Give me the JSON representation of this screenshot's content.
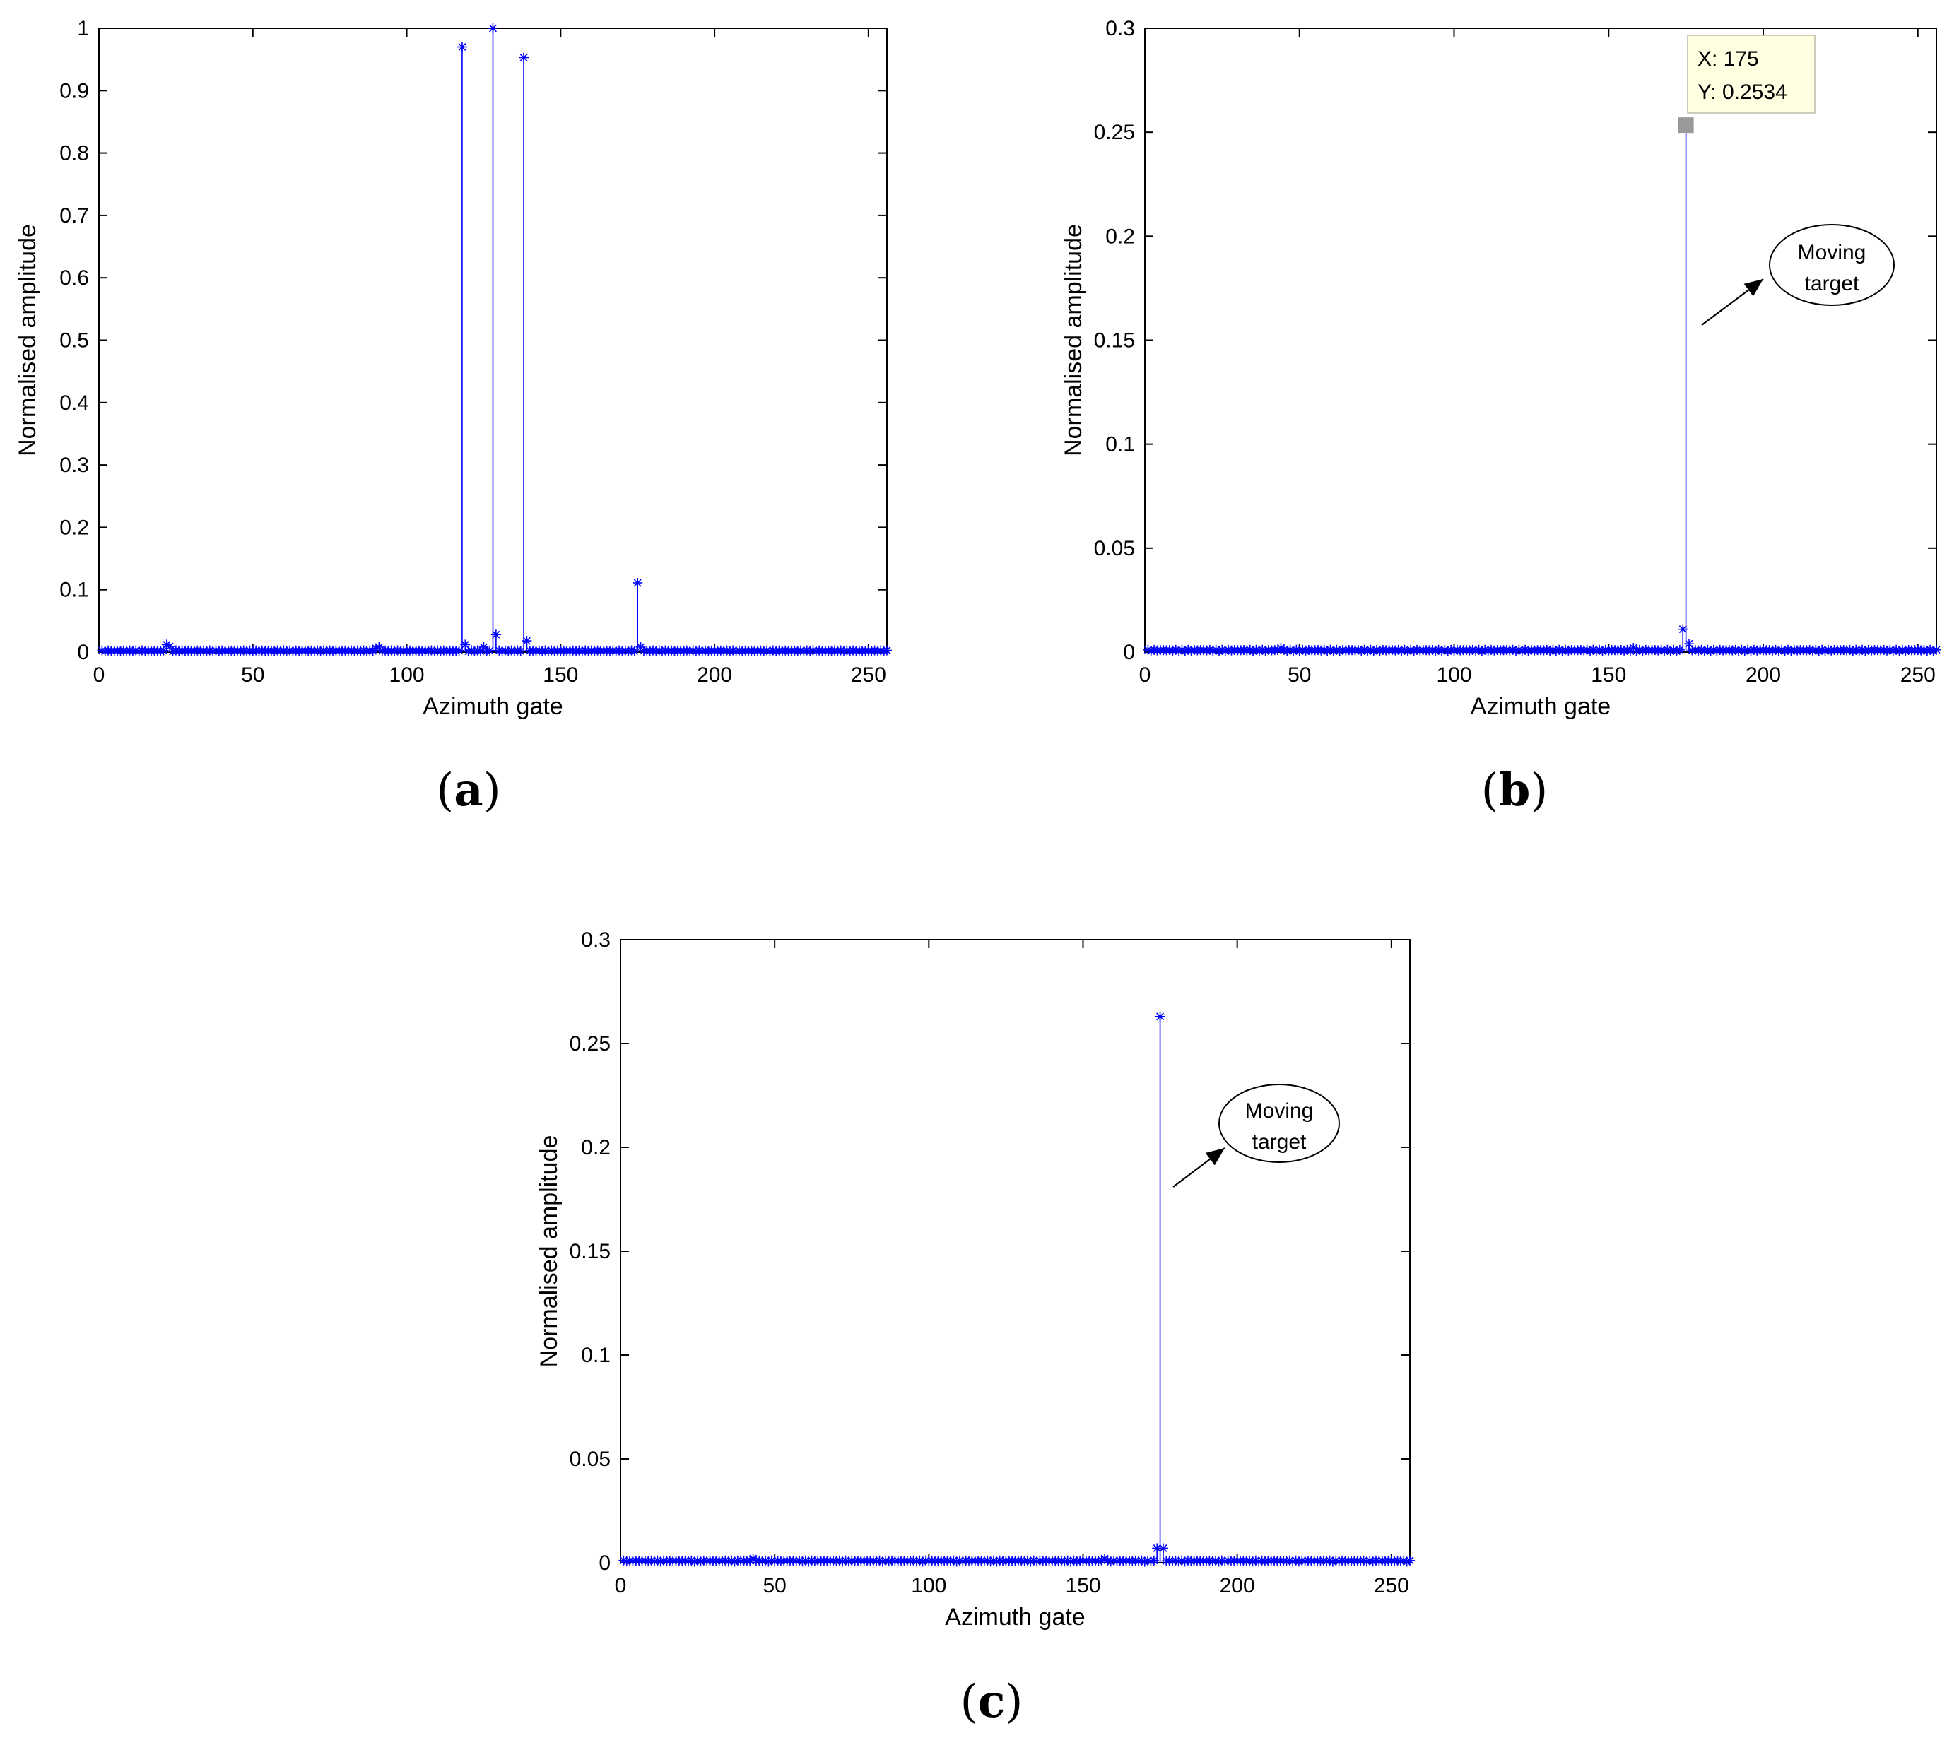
{
  "chart_data": [
    {
      "panel": "(a)",
      "type": "stem",
      "xlabel": "Azimuth gate",
      "ylabel": "Normalised amplitude",
      "xlim": [
        0,
        256
      ],
      "ylim": [
        0,
        1
      ],
      "xticks": [
        "0",
        "50",
        "100",
        "150",
        "200",
        "250"
      ],
      "yticks": [
        "0",
        "0.1",
        "0.2",
        "0.3",
        "0.4",
        "0.5",
        "0.6",
        "0.7",
        "0.8",
        "0.9",
        "1"
      ],
      "series": [
        {
          "color": "#0000ff",
          "marker": "asterisk",
          "baseline": 0.002,
          "peaks": [
            {
              "x": 22,
              "y": 0.012
            },
            {
              "x": 23,
              "y": 0.009
            },
            {
              "x": 90,
              "y": 0.006
            },
            {
              "x": 91,
              "y": 0.008
            },
            {
              "x": 118,
              "y": 0.97
            },
            {
              "x": 119,
              "y": 0.012
            },
            {
              "x": 125,
              "y": 0.008
            },
            {
              "x": 128,
              "y": 1.0
            },
            {
              "x": 129,
              "y": 0.028
            },
            {
              "x": 138,
              "y": 0.953
            },
            {
              "x": 139,
              "y": 0.018
            },
            {
              "x": 175,
              "y": 0.111
            },
            {
              "x": 176,
              "y": 0.008
            }
          ]
        }
      ]
    },
    {
      "panel": "(b)",
      "type": "stem",
      "xlabel": "Azimuth gate",
      "ylabel": "Normalised amplitude",
      "xlim": [
        0,
        256
      ],
      "ylim": [
        0,
        0.3
      ],
      "xticks": [
        "0",
        "50",
        "100",
        "150",
        "200",
        "250"
      ],
      "yticks": [
        "0",
        "0.05",
        "0.1",
        "0.15",
        "0.2",
        "0.25",
        "0.3"
      ],
      "series": [
        {
          "color": "#0000ff",
          "marker": "asterisk",
          "baseline": 0.0008,
          "peaks": [
            {
              "x": 44,
              "y": 0.002
            },
            {
              "x": 158,
              "y": 0.002
            },
            {
              "x": 174,
              "y": 0.011
            },
            {
              "x": 175,
              "y": 0.2534
            },
            {
              "x": 176,
              "y": 0.004
            }
          ]
        }
      ],
      "datatip": {
        "x_text": "X: 175",
        "y_text": "Y: 0.2534",
        "x": 175,
        "y": 0.2534
      },
      "annotation": {
        "line1": "Moving",
        "line2": "target"
      }
    },
    {
      "panel": "(c)",
      "type": "stem",
      "xlabel": "Azimuth gate",
      "ylabel": "Normalised amplitude",
      "xlim": [
        0,
        256
      ],
      "ylim": [
        0,
        0.3
      ],
      "xticks": [
        "0",
        "50",
        "100",
        "150",
        "200",
        "250"
      ],
      "yticks": [
        "0",
        "0.05",
        "0.1",
        "0.15",
        "0.2",
        "0.25",
        "0.3"
      ],
      "series": [
        {
          "color": "#0000ff",
          "marker": "asterisk",
          "baseline": 0.0008,
          "peaks": [
            {
              "x": 43,
              "y": 0.002
            },
            {
              "x": 157,
              "y": 0.002
            },
            {
              "x": 174,
              "y": 0.007
            },
            {
              "x": 175,
              "y": 0.263
            },
            {
              "x": 176,
              "y": 0.007
            }
          ]
        }
      ],
      "annotation": {
        "line1": "Moving",
        "line2": "target"
      }
    }
  ],
  "panel_labels": {
    "a": {
      "open": "(",
      "letter": "a",
      "close": ")"
    },
    "b": {
      "open": "(",
      "letter": "b",
      "close": ")"
    },
    "c": {
      "open": "(",
      "letter": "c",
      "close": ")"
    }
  },
  "colors": {
    "stem": "#0000ff",
    "datatip_bg": "#ffffe1",
    "datatip_marker": "#999999"
  }
}
